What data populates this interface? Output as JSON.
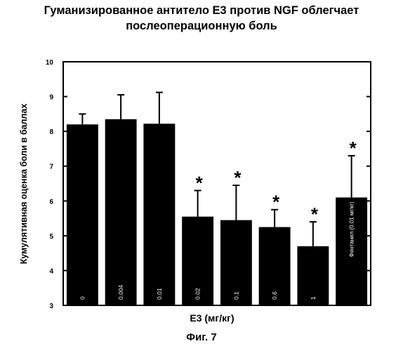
{
  "title_line1": "Гуманизированное антитело Е3 против NGF облегчает",
  "title_line2": "послеоперационную боль",
  "figure_caption": "Фиг. 7",
  "chart_data": {
    "type": "bar",
    "title": "Гуманизированное антитело Е3 против NGF облегчает послеоперационную боль",
    "xlabel": "Е3 (мг/кг)",
    "ylabel": "Кумулятивная оценка боли в баллах",
    "ylim": [
      3,
      10
    ],
    "yticks": [
      3,
      4,
      5,
      6,
      7,
      8,
      9,
      10
    ],
    "categories": [
      "0",
      "0.004",
      "0.01",
      "0.02",
      "0.1",
      "0.6",
      "1",
      "Фентанил (0.01 мг/кг)"
    ],
    "values": [
      8.2,
      8.35,
      8.22,
      5.55,
      5.45,
      5.25,
      4.7,
      6.1
    ],
    "errors": [
      0.3,
      0.7,
      0.9,
      0.75,
      1.0,
      0.5,
      0.7,
      1.2
    ],
    "significant": [
      false,
      false,
      false,
      true,
      true,
      true,
      true,
      true
    ],
    "significance_marker": "*",
    "bar_color": "#000000",
    "grid": false
  }
}
